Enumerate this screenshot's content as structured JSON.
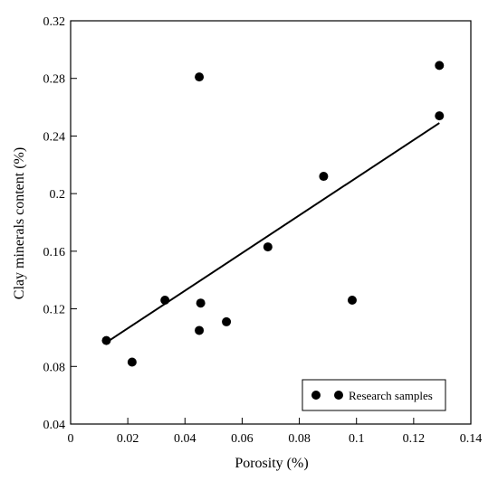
{
  "chart_data": {
    "type": "scatter",
    "title": "",
    "xlabel": "Porosity (%)",
    "ylabel": "Clay minerals content (%)",
    "xlim": [
      0,
      0.14
    ],
    "ylim": [
      0.04,
      0.32
    ],
    "x_ticks": [
      "0",
      "0.02",
      "0.04",
      "0.06",
      "0.08",
      "0.1",
      "0.12",
      "0.14"
    ],
    "y_ticks": [
      "0.04",
      "0.08",
      "0.12",
      "0.16",
      "0.2",
      "0.24",
      "0.28",
      "0.32"
    ],
    "grid": false,
    "legend_position": "bottom-right",
    "series": [
      {
        "name": "Research samples",
        "color": "#000000",
        "points": [
          {
            "x": 0.0125,
            "y": 0.098
          },
          {
            "x": 0.0215,
            "y": 0.083
          },
          {
            "x": 0.033,
            "y": 0.126
          },
          {
            "x": 0.045,
            "y": 0.281
          },
          {
            "x": 0.0455,
            "y": 0.124
          },
          {
            "x": 0.045,
            "y": 0.105
          },
          {
            "x": 0.0545,
            "y": 0.111
          },
          {
            "x": 0.069,
            "y": 0.163
          },
          {
            "x": 0.0885,
            "y": 0.212
          },
          {
            "x": 0.0985,
            "y": 0.126
          },
          {
            "x": 0.129,
            "y": 0.289
          },
          {
            "x": 0.129,
            "y": 0.254
          }
        ]
      }
    ],
    "trendline": {
      "x_start": 0.012,
      "y_start": 0.096,
      "x_end": 0.129,
      "y_end": 0.249
    }
  }
}
